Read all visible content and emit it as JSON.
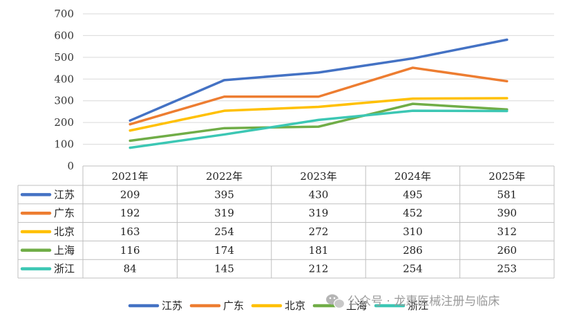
{
  "chart_data": {
    "type": "line",
    "categories": [
      "2021年",
      "2022年",
      "2023年",
      "2024年",
      "2025年"
    ],
    "ylim": [
      0,
      700
    ],
    "yticks": [
      0,
      100,
      200,
      300,
      400,
      500,
      600,
      700
    ],
    "grid": true,
    "legend_position": "bottom",
    "series": [
      {
        "name": "江苏",
        "color": "#4472C4",
        "values": [
          209,
          395,
          430,
          495,
          581
        ]
      },
      {
        "name": "广东",
        "color": "#ED7D31",
        "values": [
          192,
          319,
          319,
          452,
          390
        ]
      },
      {
        "name": "北京",
        "color": "#FFC000",
        "values": [
          163,
          254,
          272,
          310,
          312
        ]
      },
      {
        "name": "上海",
        "color": "#70AD47",
        "values": [
          116,
          174,
          181,
          286,
          260
        ]
      },
      {
        "name": "浙江",
        "color": "#3CC7B4",
        "values": [
          84,
          145,
          212,
          254,
          253
        ]
      }
    ]
  },
  "watermark": {
    "icon": "wechat-icon",
    "text": "公众号 · 龙惠医械注册与临床"
  }
}
